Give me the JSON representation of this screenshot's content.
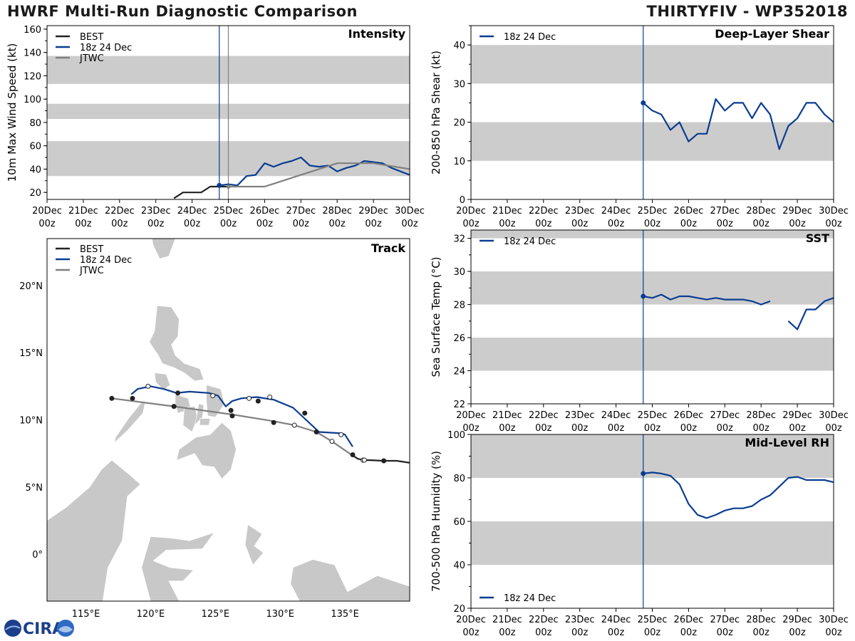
{
  "header": {
    "title": "HWRF Multi-Run Diagnostic Comparison",
    "storm": "THIRTYFIV - WP352018"
  },
  "logo": {
    "text": "CIRA"
  },
  "colors": {
    "best": "#222222",
    "run": "#0a3d91",
    "jtwc": "#808080",
    "band": "#cccccc",
    "land": "#c8c8c8"
  },
  "time_axis": {
    "range": [
      0,
      10
    ],
    "tick_top": [
      "20Dec",
      "21Dec",
      "22Dec",
      "23Dec",
      "24Dec",
      "25Dec",
      "26Dec",
      "27Dec",
      "28Dec",
      "29Dec",
      "30Dec"
    ],
    "tick_bottom": [
      "00z",
      "00z",
      "00z",
      "00z",
      "00z",
      "00z",
      "00z",
      "00z",
      "00z",
      "00z",
      "00z"
    ],
    "init_day": 4.75,
    "jtwc_day": 5.0
  },
  "chart_data": [
    {
      "id": "intensity",
      "type": "line",
      "title": "Intensity",
      "ylabel": "10m Max Wind Speed (kt)",
      "xlim": [
        0,
        10
      ],
      "ylim": [
        14,
        163
      ],
      "yticks": [
        20,
        40,
        60,
        80,
        100,
        120,
        140,
        160
      ],
      "bands": [
        [
          34,
          64
        ],
        [
          83,
          96
        ],
        [
          113,
          137
        ]
      ],
      "legend": [
        "BEST",
        "18z 24 Dec",
        "JTWC"
      ],
      "series": [
        {
          "name": "BEST",
          "x": [
            3.5,
            3.75,
            4.0,
            4.25,
            4.5,
            4.75,
            5.0
          ],
          "y": [
            15,
            20,
            20,
            20,
            25,
            25,
            25
          ]
        },
        {
          "name": "18z 24 Dec",
          "x": [
            4.75,
            5.0,
            5.25,
            5.5,
            5.75,
            6.0,
            6.25,
            6.5,
            6.75,
            7.0,
            7.25,
            7.5,
            7.75,
            8.0,
            8.25,
            8.5,
            8.75,
            9.0,
            9.25,
            9.5,
            9.75,
            10.0
          ],
          "y": [
            26,
            27,
            26,
            34,
            35,
            45,
            42,
            45,
            47,
            50,
            43,
            42,
            43,
            38,
            41,
            43,
            47,
            46,
            45,
            41,
            38,
            35
          ]
        },
        {
          "name": "JTWC",
          "x": [
            5.0,
            6.0,
            8.0,
            9.0,
            10.0
          ],
          "y": [
            25,
            25,
            45,
            45,
            40
          ]
        }
      ]
    },
    {
      "id": "shear",
      "type": "line",
      "title": "Deep-Layer Shear",
      "ylabel": "200-850 hPa Shear (kt)",
      "xlim": [
        0,
        10
      ],
      "ylim": [
        0,
        45
      ],
      "yticks": [
        0,
        10,
        20,
        30,
        40
      ],
      "bands": [
        [
          10,
          20
        ],
        [
          30,
          40
        ]
      ],
      "legend": [
        "18z 24 Dec"
      ],
      "series": [
        {
          "name": "18z 24 Dec",
          "x": [
            4.75,
            5.0,
            5.25,
            5.5,
            5.75,
            6.0,
            6.25,
            6.5,
            6.75,
            7.0,
            7.25,
            7.5,
            7.75,
            8.0,
            8.25,
            8.5,
            8.75,
            9.0,
            9.25,
            9.5,
            9.75,
            10.0
          ],
          "y": [
            25,
            23,
            22,
            18,
            20,
            15,
            17,
            17,
            26,
            23,
            25,
            25,
            21,
            25,
            22,
            13,
            19,
            21,
            25,
            25,
            22,
            20
          ]
        }
      ]
    },
    {
      "id": "sst",
      "type": "line",
      "title": "SST",
      "ylabel": "Sea Surface Temp (°C)",
      "xlim": [
        0,
        10
      ],
      "ylim": [
        22,
        32.5
      ],
      "yticks": [
        22,
        24,
        26,
        28,
        30,
        32
      ],
      "bands": [
        [
          24,
          26
        ],
        [
          28,
          30
        ],
        [
          32,
          33
        ]
      ],
      "legend": [
        "18z 24 Dec"
      ],
      "series": [
        {
          "name": "18z 24 Dec",
          "x": [
            4.75,
            5.0,
            5.25,
            5.5,
            5.75,
            6.0,
            6.25,
            6.5,
            6.75,
            7.0,
            7.25,
            7.5,
            7.75,
            8.0,
            8.25
          ],
          "y": [
            28.5,
            28.4,
            28.6,
            28.3,
            28.5,
            28.5,
            28.4,
            28.3,
            28.4,
            28.3,
            28.3,
            28.3,
            28.2,
            28.0,
            28.2
          ]
        },
        {
          "name": "18z 24 Dec (cont.)",
          "x": [
            8.75,
            9.0,
            9.25,
            9.5,
            9.75,
            10.0
          ],
          "y": [
            27.0,
            26.5,
            27.7,
            27.7,
            28.2,
            28.4
          ]
        }
      ]
    },
    {
      "id": "rh",
      "type": "line",
      "title": "Mid-Level RH",
      "ylabel": "700-500 hPa Humidity (%)",
      "xlim": [
        0,
        10
      ],
      "ylim": [
        20,
        100
      ],
      "yticks": [
        20,
        40,
        60,
        80,
        100
      ],
      "bands": [
        [
          40,
          60
        ],
        [
          80,
          100
        ]
      ],
      "legend": [
        "18z 24 Dec"
      ],
      "series": [
        {
          "name": "18z 24 Dec",
          "x": [
            4.75,
            5.0,
            5.25,
            5.5,
            5.75,
            6.0,
            6.25,
            6.5,
            6.75,
            7.0,
            7.25,
            7.5,
            7.75,
            8.0,
            8.25,
            8.5,
            8.75,
            9.0,
            9.25,
            9.5,
            9.75,
            10.0
          ],
          "y": [
            82,
            82.5,
            82,
            81,
            77,
            68,
            63,
            61.5,
            63,
            65,
            66,
            66,
            67,
            70,
            72,
            76,
            80,
            80.5,
            79,
            79,
            79,
            78
          ]
        }
      ]
    },
    {
      "id": "track",
      "type": "scatter",
      "title": "Track",
      "lon_range": [
        112,
        140
      ],
      "lat_range": [
        -3.5,
        23.5
      ],
      "lon_ticks": [
        115,
        120,
        125,
        130,
        135
      ],
      "lon_labels": [
        "115°E",
        "120°E",
        "125°E",
        "130°E",
        "135°E"
      ],
      "lat_ticks": [
        0,
        5,
        10,
        15,
        20
      ],
      "lat_labels": [
        "0°",
        "5°N",
        "10°N",
        "15°N",
        "20°N"
      ],
      "legend": [
        "BEST",
        "18z 24 Dec",
        "JTWC"
      ],
      "series": [
        {
          "name": "BEST",
          "lon": [
            135.5,
            136,
            136.5,
            137,
            138,
            139,
            140
          ],
          "lat": [
            7.4,
            7.1,
            7.0,
            7.0,
            6.95,
            6.95,
            6.8
          ]
        },
        {
          "name": "18z 24 Dec",
          "lon": [
            135.6,
            135.0,
            134.7,
            133.0,
            132.0,
            131.0,
            129.5,
            128.2,
            127.0,
            126.3,
            125.8,
            125.2,
            124.5,
            123.0,
            122.0,
            121.0,
            120.0,
            119.0,
            118.5
          ],
          "lat": [
            8.0,
            8.9,
            9.0,
            9.1,
            10.0,
            10.9,
            11.5,
            11.7,
            11.6,
            11.4,
            11.0,
            11.8,
            12.0,
            12.1,
            12.0,
            12.3,
            12.5,
            12.3,
            11.9
          ],
          "filled_lon": [
            135.6,
            131.9,
            128.3,
            126.2,
            122.1,
            118.6
          ],
          "filled_lat": [
            7.4,
            10.5,
            11.4,
            10.7,
            12.0,
            11.6
          ],
          "open_lon": [
            134.7,
            129.2,
            127.6,
            124.8,
            119.8
          ],
          "open_lat": [
            8.9,
            11.7,
            11.6,
            11.8,
            12.5
          ]
        },
        {
          "name": "JTWC",
          "lon": [
            135.5,
            134.0,
            132.8,
            131.1,
            129.5,
            126.3,
            121.8,
            117.0
          ],
          "lat": [
            7.4,
            8.4,
            9.1,
            9.6,
            9.9,
            10.4,
            11.0,
            11.6
          ],
          "filled_lon": [
            132.8,
            129.5,
            126.3,
            121.8,
            117.0
          ],
          "filled_lat": [
            9.1,
            9.8,
            10.3,
            11.0,
            11.6
          ],
          "open_lon": [
            134.0,
            131.1,
            136.4
          ],
          "open_lat": [
            8.4,
            9.6,
            7.0
          ]
        }
      ]
    }
  ]
}
